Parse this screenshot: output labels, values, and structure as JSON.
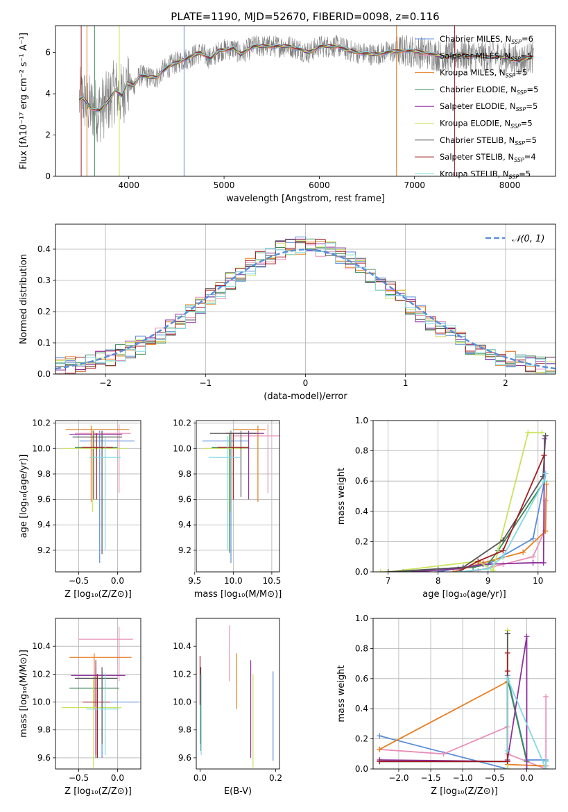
{
  "title": "PLATE=1190, MJD=52670, FIBERID=0098, z=0.116",
  "colors": {
    "chabrier_miles": "#5b8dd9",
    "salpeter_miles": "#e88fb8",
    "kroupa_miles": "#e67e22",
    "chabrier_elodie": "#3a8a56",
    "salpeter_elodie": "#8e2f9e",
    "kroupa_elodie": "#c9e35a",
    "chabrier_stelib": "#555555",
    "salpeter_stelib": "#a31e22",
    "kroupa_stelib": "#7dd9e3",
    "data": "#7f7f7f",
    "gaussian": "#5b8dd9"
  },
  "chart_data": [
    {
      "id": "spectrum",
      "type": "line",
      "xlabel": "wavelength [Angstrom, rest frame]",
      "ylabel": "Flux [fλ10⁻¹⁷ erg cm⁻² s⁻¹ A⁻¹]",
      "xlim": [
        3230,
        8480
      ],
      "ylim": [
        0,
        7.3
      ],
      "xticks": [
        4000,
        5000,
        6000,
        7000,
        8000
      ],
      "yticks": [
        0,
        2,
        4,
        6
      ],
      "legend_position": "right",
      "series": [
        {
          "name": "Chabrier MILES, N_SSP=6",
          "key": "chabrier_miles"
        },
        {
          "name": "Salpeter MILES, N_SSP=5",
          "key": "salpeter_miles"
        },
        {
          "name": "Kroupa MILES, N_SSP=5",
          "key": "kroupa_miles"
        },
        {
          "name": "Chabrier ELODIE, N_SSP=5",
          "key": "chabrier_elodie"
        },
        {
          "name": "Salpeter ELODIE, N_SSP=5",
          "key": "salpeter_elodie"
        },
        {
          "name": "Kroupa ELODIE, N_SSP=5",
          "key": "kroupa_elodie"
        },
        {
          "name": "Chabrier STELIB, N_SSP=5",
          "key": "chabrier_stelib"
        },
        {
          "name": "Salpeter STELIB, N_SSP=4",
          "key": "salpeter_stelib"
        },
        {
          "name": "Kroupa STELIB, N_SSP=5",
          "key": "kroupa_stelib"
        }
      ],
      "continuum": {
        "x": [
          3480,
          3520,
          3600,
          3700,
          3780,
          3860,
          3930,
          3980,
          4050,
          4120,
          4200,
          4300,
          4350,
          4450,
          4550,
          4650,
          4750,
          4861,
          4950,
          5100,
          5175,
          5300,
          5500,
          5700,
          5890,
          6000,
          6200,
          6300,
          6400,
          6563,
          6700,
          6900,
          7100,
          7300,
          7500,
          7700,
          7900,
          8100,
          8250
        ],
        "y": [
          3.7,
          3.8,
          3.3,
          3.2,
          3.6,
          4.2,
          3.9,
          4.5,
          4.4,
          4.9,
          4.8,
          4.8,
          5.1,
          5.4,
          5.6,
          5.8,
          6.0,
          5.7,
          6.1,
          6.2,
          5.9,
          6.3,
          6.3,
          6.3,
          6.0,
          6.3,
          6.3,
          6.1,
          6.0,
          5.9,
          6.0,
          6.1,
          6.0,
          5.8,
          5.9,
          5.8,
          5.8,
          5.6,
          5.8
        ]
      }
    },
    {
      "id": "residuals",
      "type": "bar",
      "xlabel": "(data-model)/error",
      "ylabel": "Normed distribution",
      "xlim": [
        -2.5,
        2.5
      ],
      "ylim": [
        0,
        0.48
      ],
      "xticks": [
        -2,
        -1,
        0,
        1,
        2
      ],
      "yticks": [
        0.0,
        0.1,
        0.2,
        0.3,
        0.4
      ],
      "grid": true,
      "legend_position": "top-right",
      "gaussian_label": "𝒩(0, 1)",
      "bin_edges": [
        -2.5,
        -2.4,
        -2.3,
        -2.2,
        -2.1,
        -2.0,
        -1.9,
        -1.8,
        -1.7,
        -1.6,
        -1.5,
        -1.4,
        -1.3,
        -1.2,
        -1.1,
        -1.0,
        -0.9,
        -0.8,
        -0.7,
        -0.6,
        -0.5,
        -0.4,
        -0.3,
        -0.2,
        -0.1,
        0.0,
        0.1,
        0.2,
        0.3,
        0.4,
        0.5,
        0.6,
        0.7,
        0.8,
        0.9,
        1.0,
        1.1,
        1.2,
        1.3,
        1.4,
        1.5,
        1.6,
        1.7,
        1.8,
        1.9,
        2.0,
        2.1,
        2.2,
        2.3,
        2.4,
        2.5
      ],
      "base_values": [
        0.025,
        0.028,
        0.032,
        0.038,
        0.046,
        0.055,
        0.065,
        0.077,
        0.092,
        0.108,
        0.127,
        0.148,
        0.17,
        0.194,
        0.219,
        0.245,
        0.271,
        0.296,
        0.321,
        0.344,
        0.365,
        0.383,
        0.397,
        0.407,
        0.412,
        0.412,
        0.407,
        0.397,
        0.383,
        0.365,
        0.344,
        0.321,
        0.296,
        0.271,
        0.245,
        0.219,
        0.194,
        0.17,
        0.148,
        0.127,
        0.108,
        0.092,
        0.077,
        0.065,
        0.055,
        0.046,
        0.038,
        0.032,
        0.028,
        0.025
      ],
      "series_keys": [
        "chabrier_miles",
        "salpeter_miles",
        "kroupa_miles",
        "chabrier_elodie",
        "salpeter_elodie",
        "kroupa_elodie",
        "chabrier_stelib",
        "salpeter_stelib",
        "kroupa_stelib"
      ]
    },
    {
      "id": "age_vs_Z",
      "type": "scatter",
      "xlabel": "Z [log₁₀(Z/Z⊙)]",
      "ylabel": "age  [log₁₀(age/yr)]",
      "xlim": [
        -0.8,
        0.3
      ],
      "ylim": [
        9.03,
        10.22
      ],
      "xticks": [
        -0.5,
        0.0
      ],
      "yticks": [
        9.2,
        9.4,
        9.6,
        9.8,
        10.0,
        10.2
      ],
      "grid": true,
      "errorbars": [
        {
          "key": "chabrier_miles",
          "x": -0.23,
          "y": 10.06,
          "x0": -0.49,
          "x1": 0.22,
          "y0": 9.1,
          "y1": 10.14
        },
        {
          "key": "salpeter_miles",
          "x": 0.02,
          "y": 10.12,
          "x0": -0.55,
          "x1": 0.17,
          "y0": 9.65,
          "y1": 10.19
        },
        {
          "key": "kroupa_miles",
          "x": -0.34,
          "y": 10.15,
          "x0": -0.67,
          "x1": 0.15,
          "y0": 9.58,
          "y1": 10.18
        },
        {
          "key": "chabrier_elodie",
          "x": -0.31,
          "y": 10.01,
          "x0": -0.55,
          "x1": 0.0,
          "y0": 9.6,
          "y1": 10.12
        },
        {
          "key": "salpeter_elodie",
          "x": -0.31,
          "y": 10.11,
          "x0": -0.62,
          "x1": 0.06,
          "y0": 9.6,
          "y1": 10.14
        },
        {
          "key": "kroupa_elodie",
          "x": -0.32,
          "y": 10.0,
          "x0": -0.72,
          "x1": 0.12,
          "y0": 9.5,
          "y1": 10.15
        },
        {
          "key": "chabrier_stelib",
          "x": -0.2,
          "y": 10.09,
          "x0": -0.58,
          "x1": 0.06,
          "y0": 9.17,
          "y1": 10.14
        },
        {
          "key": "salpeter_stelib",
          "x": -0.27,
          "y": 10.01,
          "x0": -0.46,
          "x1": -0.06,
          "y0": 9.6,
          "y1": 10.12
        },
        {
          "key": "kroupa_stelib",
          "x": -0.16,
          "y": 9.93,
          "x0": -0.36,
          "x1": 0.04,
          "y0": 9.2,
          "y1": 10.1
        }
      ]
    },
    {
      "id": "age_vs_mass",
      "type": "scatter",
      "xlabel": "mass [log₁₀(M/M⊙)]",
      "ylabel": "",
      "xlim": [
        9.52,
        10.6
      ],
      "ylim": [
        9.03,
        10.22
      ],
      "xticks": [
        9.5,
        10.0,
        10.5
      ],
      "yticks": [
        9.2,
        9.4,
        9.6,
        9.8,
        10.0,
        10.2
      ],
      "grid": true,
      "errorbars": [
        {
          "key": "chabrier_miles",
          "x": 9.97,
          "y": 10.06,
          "x0": 9.6,
          "x1": 10.2,
          "y0": 9.1,
          "y1": 10.14
        },
        {
          "key": "salpeter_miles",
          "x": 10.45,
          "y": 10.1,
          "x0": 10.0,
          "x1": 10.6,
          "y0": 9.65,
          "y1": 10.19
        },
        {
          "key": "kroupa_miles",
          "x": 10.32,
          "y": 10.15,
          "x0": 10.0,
          "x1": 10.42,
          "y0": 9.58,
          "y1": 10.18
        },
        {
          "key": "chabrier_elodie",
          "x": 9.95,
          "y": 10.01,
          "x0": 9.72,
          "x1": 10.2,
          "y0": 9.18,
          "y1": 10.12
        },
        {
          "key": "salpeter_elodie",
          "x": 10.2,
          "y": 10.12,
          "x0": 9.9,
          "x1": 10.4,
          "y0": 9.6,
          "y1": 10.14
        },
        {
          "key": "kroupa_elodie",
          "x": 9.96,
          "y": 10.0,
          "x0": 9.6,
          "x1": 10.15,
          "y0": 9.5,
          "y1": 10.14
        },
        {
          "key": "chabrier_stelib",
          "x": 10.1,
          "y": 10.12,
          "x0": 9.7,
          "x1": 10.3,
          "y0": 9.62,
          "y1": 10.14
        },
        {
          "key": "salpeter_stelib",
          "x": 10.0,
          "y": 10.01,
          "x0": 9.8,
          "x1": 10.2,
          "y0": 9.6,
          "y1": 10.12
        },
        {
          "key": "kroupa_stelib",
          "x": 9.93,
          "y": 9.93,
          "x0": 9.68,
          "x1": 10.1,
          "y0": 9.2,
          "y1": 10.1
        }
      ]
    },
    {
      "id": "weight_vs_age",
      "type": "line",
      "xlabel": "age  [log₁₀(age/yr)]",
      "ylabel": "mass weight",
      "xlim": [
        6.7,
        10.35
      ],
      "ylim": [
        0,
        1.0
      ],
      "xticks": [
        7,
        8,
        9,
        10
      ],
      "yticks": [
        0.0,
        0.2,
        0.4,
        0.6,
        0.8,
        1.0
      ],
      "grid": true,
      "series": [
        {
          "key": "chabrier_miles",
          "x": [
            8.0,
            8.5,
            9.0,
            9.9,
            10.13,
            10.15
          ],
          "y": [
            0.0,
            0.03,
            0.05,
            0.22,
            0.6,
            0.65
          ]
        },
        {
          "key": "salpeter_miles",
          "x": [
            8.4,
            8.8,
            9.3,
            9.9,
            10.13,
            10.15
          ],
          "y": [
            0.0,
            0.01,
            0.05,
            0.1,
            0.27,
            0.47
          ]
        },
        {
          "key": "kroupa_miles",
          "x": [
            8.3,
            8.9,
            9.7,
            10.15,
            10.17
          ],
          "y": [
            0.0,
            0.06,
            0.13,
            0.27,
            0.58
          ]
        },
        {
          "key": "chabrier_elodie",
          "x": [
            7.3,
            8.0,
            8.7,
            9.0,
            9.2,
            10.13
          ],
          "y": [
            0.0,
            0.02,
            0.03,
            0.05,
            0.14,
            0.6
          ]
        },
        {
          "key": "salpeter_elodie",
          "x": [
            7.5,
            8.4,
            8.9,
            9.9,
            10.11,
            10.13
          ],
          "y": [
            0.0,
            0.02,
            0.05,
            0.06,
            0.06,
            0.88
          ]
        },
        {
          "key": "kroupa_elodie",
          "x": [
            6.85,
            7.0,
            8.8,
            9.1,
            9.8,
            10.08
          ],
          "y": [
            0.0,
            0.0,
            0.07,
            0.01,
            0.92,
            0.92
          ]
        },
        {
          "key": "chabrier_stelib",
          "x": [
            7.0,
            8.5,
            9.3,
            10.1,
            10.15
          ],
          "y": [
            0.0,
            0.03,
            0.21,
            0.63,
            0.9
          ]
        },
        {
          "key": "salpeter_stelib",
          "x": [
            8.4,
            8.8,
            9.3,
            10.12
          ],
          "y": [
            0.0,
            0.07,
            0.14,
            0.77
          ]
        },
        {
          "key": "kroupa_stelib",
          "x": [
            8.4,
            9.0,
            9.3,
            10.12,
            10.15
          ],
          "y": [
            0.0,
            0.02,
            0.1,
            0.6,
            0.65
          ]
        }
      ]
    },
    {
      "id": "mass_vs_Z",
      "type": "scatter",
      "xlabel": "Z [log₁₀(Z/Z⊙)]",
      "ylabel": "mass [log₁₀(M/M⊙)]",
      "xlim": [
        -0.8,
        0.3
      ],
      "ylim": [
        9.52,
        10.6
      ],
      "xticks": [
        -0.5,
        0.0
      ],
      "yticks": [
        9.6,
        9.8,
        10.0,
        10.2,
        10.4
      ],
      "grid": true,
      "errorbars": [
        {
          "key": "chabrier_miles",
          "x": -0.2,
          "y": 10.0,
          "x0": -0.43,
          "x1": 0.28,
          "y0": 9.6,
          "y1": 10.22
        },
        {
          "key": "salpeter_miles",
          "x": 0.02,
          "y": 10.45,
          "x0": -0.5,
          "x1": 0.2,
          "y0": 10.15,
          "y1": 10.54
        },
        {
          "key": "kroupa_miles",
          "x": -0.3,
          "y": 10.32,
          "x0": -0.62,
          "x1": 0.18,
          "y0": 9.95,
          "y1": 10.35
        },
        {
          "key": "chabrier_elodie",
          "x": -0.28,
          "y": 10.1,
          "x0": -0.62,
          "x1": 0.02,
          "y0": 9.6,
          "y1": 10.25
        },
        {
          "key": "salpeter_elodie",
          "x": -0.28,
          "y": 10.19,
          "x0": -0.6,
          "x1": 0.1,
          "y0": 9.62,
          "y1": 10.3
        },
        {
          "key": "kroupa_elodie",
          "x": -0.31,
          "y": 9.96,
          "x0": -0.72,
          "x1": 0.05,
          "y0": 9.53,
          "y1": 10.18
        },
        {
          "key": "chabrier_stelib",
          "x": -0.2,
          "y": 10.17,
          "x0": -0.55,
          "x1": 0.0,
          "y0": 9.7,
          "y1": 10.25
        },
        {
          "key": "salpeter_stelib",
          "x": -0.26,
          "y": 10.0,
          "x0": -0.45,
          "x1": -0.1,
          "y0": 9.6,
          "y1": 10.2
        },
        {
          "key": "kroupa_stelib",
          "x": -0.16,
          "y": 9.95,
          "x0": -0.4,
          "x1": 0.02,
          "y0": 9.62,
          "y1": 10.2
        }
      ]
    },
    {
      "id": "mass_vs_ebv",
      "type": "scatter",
      "xlabel": "E(B-V)",
      "ylabel": "",
      "xlim": [
        -0.01,
        0.21
      ],
      "ylim": [
        9.52,
        10.6
      ],
      "xticks": [
        0.0,
        0.2
      ],
      "yticks": [
        9.6,
        9.8,
        10.0,
        10.2,
        10.4
      ],
      "grid": false,
      "errorbars": [
        {
          "key": "chabrier_miles",
          "x": 0.193,
          "y0": 9.58,
          "y1": 10.22
        },
        {
          "key": "salpeter_miles",
          "x": 0.078,
          "y0": 10.15,
          "y1": 10.55
        },
        {
          "key": "kroupa_miles",
          "x": 0.097,
          "y0": 9.95,
          "y1": 10.35
        },
        {
          "key": "chabrier_elodie",
          "x": 0.001,
          "y0": 9.7,
          "y1": 10.25
        },
        {
          "key": "salpeter_elodie",
          "x": 0.134,
          "y0": 9.6,
          "y1": 10.3
        },
        {
          "key": "kroupa_elodie",
          "x": 0.14,
          "y0": 9.53,
          "y1": 10.2
        },
        {
          "key": "chabrier_stelib",
          "x": 0.002,
          "y0": 9.65,
          "y1": 10.25
        },
        {
          "key": "salpeter_stelib",
          "x": 0.0,
          "y0": 9.98,
          "y1": 10.33
        },
        {
          "key": "kroupa_stelib",
          "x": 0.003,
          "y0": 9.62,
          "y1": 10.2
        }
      ]
    },
    {
      "id": "weight_vs_Z",
      "type": "line",
      "xlabel": "Z [log₁₀(Z/Z⊙)]",
      "ylabel": "mass weight",
      "xlim": [
        -2.4,
        0.45
      ],
      "ylim": [
        0,
        1.0
      ],
      "xticks": [
        -2.0,
        -1.5,
        -1.0,
        -0.5,
        0.0
      ],
      "yticks": [
        0.0,
        0.2,
        0.4,
        0.6,
        0.8,
        1.0
      ],
      "grid": true,
      "series": [
        {
          "key": "chabrier_miles",
          "x": [
            -2.3,
            -0.3,
            -0.3,
            0.0,
            0.3,
            0.3
          ],
          "y": [
            0.22,
            0.0,
            0.62,
            0.06,
            0.06,
            0.0
          ]
        },
        {
          "key": "salpeter_miles",
          "x": [
            -2.3,
            -1.3,
            -0.3,
            -0.3,
            0.3,
            0.3
          ],
          "y": [
            0.13,
            0.1,
            0.28,
            0.1,
            0.0,
            0.48
          ]
        },
        {
          "key": "kroupa_miles",
          "x": [
            -2.3,
            -0.3,
            -0.3,
            0.3
          ],
          "y": [
            0.13,
            0.58,
            0.03,
            0.02
          ]
        },
        {
          "key": "chabrier_elodie",
          "x": [
            -2.3,
            -0.3,
            -0.3,
            0.0
          ],
          "y": [
            0.05,
            0.05,
            0.6,
            0.05
          ]
        },
        {
          "key": "salpeter_elodie",
          "x": [
            -2.3,
            -0.3,
            -0.3,
            0.0,
            0.0
          ],
          "y": [
            0.06,
            0.05,
            0.06,
            0.88,
            0.0
          ]
        },
        {
          "key": "kroupa_elodie",
          "x": [
            -0.3,
            -0.3,
            -0.3
          ],
          "y": [
            0.0,
            0.92,
            0.0
          ]
        },
        {
          "key": "chabrier_stelib",
          "x": [
            -2.3,
            -0.3,
            -0.3
          ],
          "y": [
            0.05,
            0.05,
            0.9
          ]
        },
        {
          "key": "salpeter_stelib",
          "x": [
            -2.3,
            -0.3,
            -0.3,
            -0.3
          ],
          "y": [
            0.05,
            0.05,
            0.77,
            0.65
          ]
        },
        {
          "key": "kroupa_stelib",
          "x": [
            -0.3,
            -0.3,
            0.3,
            0.3
          ],
          "y": [
            0.12,
            0.6,
            0.0,
            0.05
          ]
        }
      ]
    }
  ]
}
